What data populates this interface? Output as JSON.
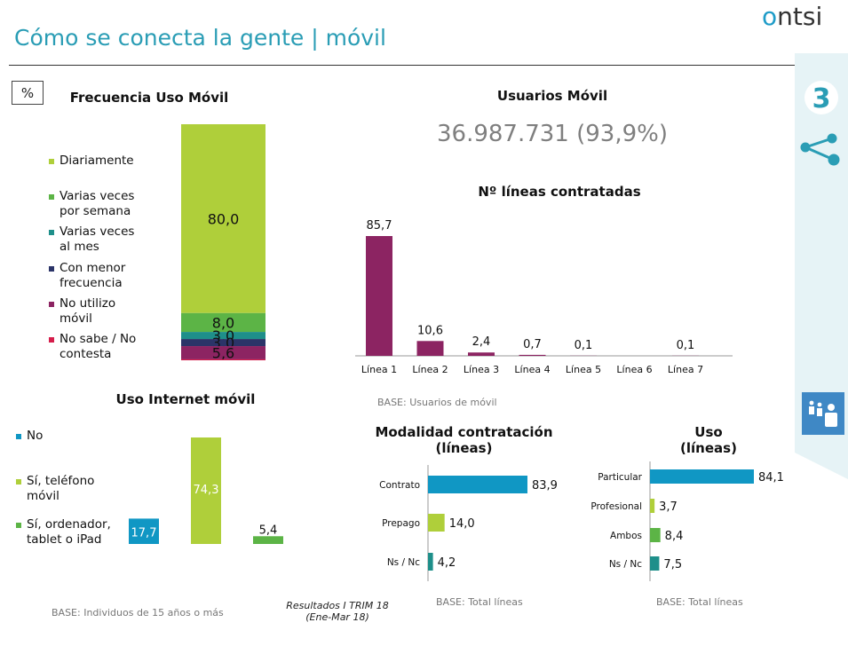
{
  "header": {
    "title": "Cómo se conecta la gente | móvil",
    "logo_o": "o",
    "logo_rest": "ntsi",
    "section_number": "3"
  },
  "unit_box": "%",
  "colors": {
    "lime": "#afcf3a",
    "green": "#5cb446",
    "teal": "#1e8f8a",
    "navy": "#2b3468",
    "purple": "#8c2462",
    "red": "#d51d4b",
    "cyan": "#1097c4",
    "accent": "#2a9db5",
    "icon_bg": "#3f88c5"
  },
  "footer": {
    "note_line1": "Resultados I TRIM 18",
    "note_line2": "(Ene-Mar 18)"
  },
  "chart_data": [
    {
      "id": "frecuencia",
      "type": "bar",
      "stacked": true,
      "title": "Frecuencia Uso Móvil",
      "categories": [
        "Diariamente",
        "Varias veces\npor semana",
        "Varias veces\nal mes",
        "Con menor\nfrecuencia",
        "No utilizo\nmóvil",
        "No sabe / No\ncontesta"
      ],
      "values": [
        80.0,
        8.0,
        3.0,
        3.0,
        5.6,
        0.4
      ],
      "labels": [
        "80,0",
        "8,0",
        "3,0",
        "3,0",
        "5,6",
        ""
      ],
      "colors": [
        "#afcf3a",
        "#5cb446",
        "#1e8f8a",
        "#2b3468",
        "#8c2462",
        "#d51d4b"
      ],
      "ylim": [
        0,
        100
      ]
    },
    {
      "id": "usuarios",
      "type": "table",
      "title": "Usuarios Móvil",
      "value": "36.987.731 (93,9%)"
    },
    {
      "id": "lineas",
      "type": "bar",
      "title": "Nº líneas contratadas",
      "categories": [
        "Línea 1",
        "Línea 2",
        "Línea 3",
        "Línea 4",
        "Línea 5",
        "Línea 6",
        "Línea 7"
      ],
      "values": [
        85.7,
        10.6,
        2.4,
        0.7,
        0.1,
        0,
        0.1
      ],
      "labels": [
        "85,7",
        "10,6",
        "2,4",
        "0,7",
        "0,1",
        "",
        "0,1"
      ],
      "color": "#8c2462",
      "ylim": [
        0,
        100
      ],
      "base": "BASE: Usuarios de móvil"
    },
    {
      "id": "internet",
      "type": "bar",
      "title": "Uso Internet móvil",
      "categories": [
        "No",
        "Sí, teléfono\nmóvil",
        "Sí, ordenador,\ntablet o iPad"
      ],
      "values": [
        17.7,
        74.3,
        5.4
      ],
      "labels": [
        "17,7",
        "74,3",
        "5,4"
      ],
      "colors": [
        "#1097c4",
        "#afcf3a",
        "#5cb446"
      ],
      "ylim": [
        0,
        100
      ],
      "base": "BASE: Individuos de 15 años o más"
    },
    {
      "id": "modalidad",
      "type": "bar",
      "orientation": "horizontal",
      "title_line1": "Modalidad contratación",
      "title_line2": "(líneas)",
      "categories": [
        "Contrato",
        "Prepago",
        "Ns / Nc"
      ],
      "values": [
        83.9,
        14.0,
        4.2
      ],
      "labels": [
        "83,9",
        "14,0",
        "4,2"
      ],
      "colors": [
        "#1097c4",
        "#afcf3a",
        "#1e8f8a"
      ],
      "xlim": [
        0,
        100
      ],
      "base": "BASE: Total líneas"
    },
    {
      "id": "uso",
      "type": "bar",
      "orientation": "horizontal",
      "title_line1": "Uso",
      "title_line2": "(líneas)",
      "categories": [
        "Particular",
        "Profesional",
        "Ambos",
        "Ns / Nc"
      ],
      "values": [
        84.1,
        3.7,
        8.4,
        7.5
      ],
      "labels": [
        "84,1",
        "3,7",
        "8,4",
        "7,5"
      ],
      "colors": [
        "#1097c4",
        "#afcf3a",
        "#5cb446",
        "#1e8f8a"
      ],
      "xlim": [
        0,
        100
      ],
      "base": "BASE: Total líneas"
    }
  ]
}
